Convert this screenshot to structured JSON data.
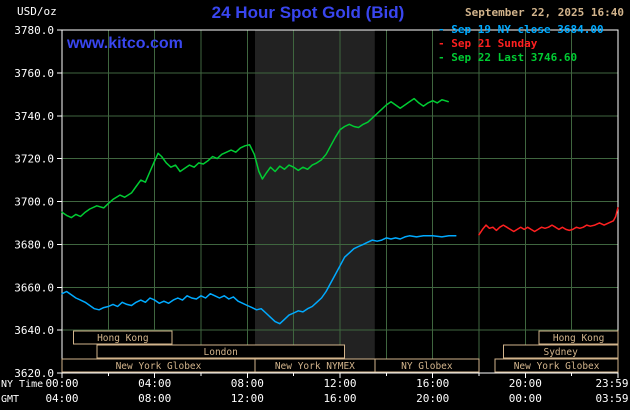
{
  "header": {
    "units": "USD/oz",
    "title": "24 Hour Spot Gold (Bid)",
    "datetime": "September 22, 2025 16:40",
    "watermark": "www.kitco.com"
  },
  "colors": {
    "background": "#000000",
    "title_blue": "#3946ef",
    "watermark_blue": "#3946ef",
    "date_tan": "#d2b48c",
    "axis_text": "#ffffff",
    "border": "#ffffff",
    "grid_green": "#3f663f",
    "band_gray": "#222222",
    "session_tan": "#d2b48c",
    "cyan": "#00aaff",
    "red": "#ff2020",
    "green": "#00cc33"
  },
  "chart_data": {
    "type": "line",
    "title": "24 Hour Spot Gold (Bid)",
    "ylabel": "USD/oz",
    "xlabel": "NY Time / GMT",
    "ylim": [
      3620,
      3780
    ],
    "yticks": [
      3620,
      3640,
      3660,
      3680,
      3700,
      3720,
      3740,
      3760,
      3780
    ],
    "xlim_hours": [
      0,
      24
    ],
    "grid": true,
    "nymex_band_hours": [
      8.33,
      13.5
    ],
    "x_axis": {
      "ny_label": "NY Time",
      "gmt_label": "GMT",
      "tick_hours": [
        0,
        4,
        8,
        12,
        16,
        20,
        24
      ],
      "ny_ticks": [
        "00:00",
        "04:00",
        "08:00",
        "12:00",
        "16:00",
        "20:00",
        "23:59"
      ],
      "gmt_ticks": [
        "04:00",
        "08:00",
        "12:00",
        "16:00",
        "20:00",
        "00:00",
        "03:59"
      ]
    },
    "legend": [
      {
        "key": "sep19",
        "label": "Sep 19 NY close 3684.00",
        "color": "#00aaff"
      },
      {
        "key": "sep21",
        "label": "Sep 21 Sunday",
        "color": "#ff2020"
      },
      {
        "key": "sep22",
        "label": "Sep 22 Last 3746.60",
        "color": "#00cc33"
      }
    ],
    "sessions": [
      {
        "label": "Hong Kong",
        "row": 0,
        "start": 0.5,
        "end": 4.75
      },
      {
        "label": "Hong Kong",
        "row": 0,
        "start": 20.6,
        "end": 24
      },
      {
        "label": "London",
        "row": 1,
        "start": 1.5,
        "end": 12.2
      },
      {
        "label": "Sydney",
        "row": 1,
        "start": 19.05,
        "end": 24
      },
      {
        "label": "New York Globex",
        "row": 2,
        "start": 0,
        "end": 8.33
      },
      {
        "label": "New York NYMEX",
        "row": 2,
        "start": 8.33,
        "end": 13.5
      },
      {
        "label": "NY Globex",
        "row": 2,
        "start": 13.5,
        "end": 18.0
      },
      {
        "label": "New York Globex",
        "row": 2,
        "start": 18.7,
        "end": 24
      }
    ],
    "series": [
      {
        "key": "sep19",
        "name": "Sep 19 NY close",
        "color": "#00aaff",
        "close_value": 3684.0,
        "points": [
          [
            0,
            3657
          ],
          [
            0.2,
            3658
          ],
          [
            0.4,
            3656.5
          ],
          [
            0.6,
            3655
          ],
          [
            0.8,
            3654
          ],
          [
            1,
            3653
          ],
          [
            1.2,
            3651.5
          ],
          [
            1.4,
            3650
          ],
          [
            1.6,
            3649.5
          ],
          [
            1.8,
            3650.5
          ],
          [
            2,
            3651
          ],
          [
            2.2,
            3652
          ],
          [
            2.4,
            3651
          ],
          [
            2.6,
            3653
          ],
          [
            2.8,
            3652
          ],
          [
            3,
            3651.5
          ],
          [
            3.2,
            3653
          ],
          [
            3.4,
            3654
          ],
          [
            3.6,
            3653
          ],
          [
            3.8,
            3655
          ],
          [
            4,
            3654
          ],
          [
            4.2,
            3652.5
          ],
          [
            4.4,
            3653.5
          ],
          [
            4.6,
            3652.5
          ],
          [
            4.8,
            3654
          ],
          [
            5,
            3655
          ],
          [
            5.2,
            3654
          ],
          [
            5.4,
            3656
          ],
          [
            5.6,
            3655
          ],
          [
            5.8,
            3654.5
          ],
          [
            6,
            3656
          ],
          [
            6.2,
            3655
          ],
          [
            6.4,
            3657
          ],
          [
            6.6,
            3656
          ],
          [
            6.8,
            3655
          ],
          [
            7,
            3656
          ],
          [
            7.2,
            3654.5
          ],
          [
            7.4,
            3655.5
          ],
          [
            7.6,
            3653.5
          ],
          [
            7.8,
            3652.5
          ],
          [
            8,
            3651.5
          ],
          [
            8.2,
            3650.5
          ],
          [
            8.4,
            3649.5
          ],
          [
            8.6,
            3650
          ],
          [
            8.8,
            3648
          ],
          [
            9,
            3646
          ],
          [
            9.2,
            3644
          ],
          [
            9.4,
            3643
          ],
          [
            9.6,
            3645
          ],
          [
            9.8,
            3647
          ],
          [
            10,
            3648
          ],
          [
            10.2,
            3649
          ],
          [
            10.4,
            3648.5
          ],
          [
            10.6,
            3650
          ],
          [
            10.8,
            3651
          ],
          [
            11,
            3653
          ],
          [
            11.2,
            3655
          ],
          [
            11.4,
            3658
          ],
          [
            11.6,
            3662
          ],
          [
            11.8,
            3666
          ],
          [
            12,
            3670
          ],
          [
            12.2,
            3674
          ],
          [
            12.4,
            3676
          ],
          [
            12.6,
            3678
          ],
          [
            12.8,
            3679
          ],
          [
            13,
            3680
          ],
          [
            13.2,
            3681
          ],
          [
            13.4,
            3682
          ],
          [
            13.6,
            3681.5
          ],
          [
            13.8,
            3682
          ],
          [
            14,
            3683
          ],
          [
            14.2,
            3682.5
          ],
          [
            14.4,
            3683
          ],
          [
            14.6,
            3682.5
          ],
          [
            14.8,
            3683.5
          ],
          [
            15,
            3684
          ],
          [
            15.3,
            3683.5
          ],
          [
            15.6,
            3684
          ],
          [
            16,
            3684
          ],
          [
            16.4,
            3683.5
          ],
          [
            16.7,
            3684
          ],
          [
            17,
            3684
          ]
        ]
      },
      {
        "key": "sep21",
        "name": "Sep 21 Sunday",
        "color": "#ff2020",
        "points": [
          [
            18,
            3684.5
          ],
          [
            18.15,
            3687
          ],
          [
            18.3,
            3689
          ],
          [
            18.45,
            3687.5
          ],
          [
            18.6,
            3688
          ],
          [
            18.75,
            3686.5
          ],
          [
            18.9,
            3688
          ],
          [
            19.05,
            3689
          ],
          [
            19.2,
            3688
          ],
          [
            19.35,
            3687
          ],
          [
            19.5,
            3686
          ],
          [
            19.65,
            3687
          ],
          [
            19.8,
            3688
          ],
          [
            19.95,
            3687
          ],
          [
            20.1,
            3688
          ],
          [
            20.25,
            3687
          ],
          [
            20.4,
            3686
          ],
          [
            20.55,
            3687
          ],
          [
            20.7,
            3688
          ],
          [
            20.85,
            3687.5
          ],
          [
            21,
            3688
          ],
          [
            21.15,
            3689
          ],
          [
            21.3,
            3688
          ],
          [
            21.45,
            3687
          ],
          [
            21.6,
            3688
          ],
          [
            21.75,
            3687
          ],
          [
            21.9,
            3686.5
          ],
          [
            22.05,
            3687
          ],
          [
            22.2,
            3688
          ],
          [
            22.35,
            3687.5
          ],
          [
            22.5,
            3688
          ],
          [
            22.65,
            3689
          ],
          [
            22.8,
            3688.5
          ],
          [
            23,
            3689
          ],
          [
            23.2,
            3690
          ],
          [
            23.4,
            3689
          ],
          [
            23.6,
            3690
          ],
          [
            23.8,
            3691
          ],
          [
            23.9,
            3693
          ],
          [
            23.99,
            3697
          ]
        ]
      },
      {
        "key": "sep22",
        "name": "Sep 22 Last",
        "color": "#00cc33",
        "last_value": 3746.6,
        "points": [
          [
            0,
            3695
          ],
          [
            0.2,
            3693.5
          ],
          [
            0.4,
            3692.5
          ],
          [
            0.6,
            3694
          ],
          [
            0.8,
            3693
          ],
          [
            1,
            3695
          ],
          [
            1.2,
            3696.5
          ],
          [
            1.5,
            3698
          ],
          [
            1.8,
            3697
          ],
          [
            2,
            3699
          ],
          [
            2.2,
            3701
          ],
          [
            2.5,
            3703
          ],
          [
            2.7,
            3702
          ],
          [
            3,
            3704
          ],
          [
            3.2,
            3707
          ],
          [
            3.4,
            3710
          ],
          [
            3.6,
            3709
          ],
          [
            3.8,
            3714
          ],
          [
            4,
            3719
          ],
          [
            4.15,
            3722.5
          ],
          [
            4.3,
            3721
          ],
          [
            4.5,
            3718
          ],
          [
            4.7,
            3716
          ],
          [
            4.9,
            3717
          ],
          [
            5.1,
            3714
          ],
          [
            5.3,
            3715.5
          ],
          [
            5.5,
            3717
          ],
          [
            5.7,
            3716
          ],
          [
            5.9,
            3718
          ],
          [
            6.1,
            3717.5
          ],
          [
            6.3,
            3719
          ],
          [
            6.5,
            3721
          ],
          [
            6.7,
            3720
          ],
          [
            6.9,
            3722
          ],
          [
            7.1,
            3723
          ],
          [
            7.3,
            3724
          ],
          [
            7.5,
            3723
          ],
          [
            7.7,
            3725
          ],
          [
            7.9,
            3726
          ],
          [
            8.1,
            3726.5
          ],
          [
            8.3,
            3722
          ],
          [
            8.5,
            3714
          ],
          [
            8.65,
            3710.5
          ],
          [
            8.8,
            3713
          ],
          [
            9,
            3716
          ],
          [
            9.2,
            3714
          ],
          [
            9.4,
            3716.5
          ],
          [
            9.6,
            3715
          ],
          [
            9.8,
            3717
          ],
          [
            10,
            3716
          ],
          [
            10.2,
            3714.5
          ],
          [
            10.4,
            3716
          ],
          [
            10.6,
            3715
          ],
          [
            10.8,
            3717
          ],
          [
            11,
            3718
          ],
          [
            11.2,
            3719.5
          ],
          [
            11.4,
            3722
          ],
          [
            11.6,
            3726
          ],
          [
            11.8,
            3730
          ],
          [
            12,
            3733.5
          ],
          [
            12.2,
            3735
          ],
          [
            12.4,
            3736
          ],
          [
            12.6,
            3735
          ],
          [
            12.8,
            3734.5
          ],
          [
            13,
            3736
          ],
          [
            13.2,
            3737
          ],
          [
            13.4,
            3739
          ],
          [
            13.6,
            3741
          ],
          [
            13.8,
            3743
          ],
          [
            14,
            3745
          ],
          [
            14.2,
            3746.5
          ],
          [
            14.4,
            3745
          ],
          [
            14.6,
            3743.5
          ],
          [
            14.8,
            3745
          ],
          [
            15,
            3746.5
          ],
          [
            15.2,
            3748
          ],
          [
            15.4,
            3746
          ],
          [
            15.6,
            3744.5
          ],
          [
            15.8,
            3746
          ],
          [
            16,
            3747
          ],
          [
            16.2,
            3746
          ],
          [
            16.4,
            3747.5
          ],
          [
            16.67,
            3746.6
          ]
        ]
      }
    ]
  }
}
